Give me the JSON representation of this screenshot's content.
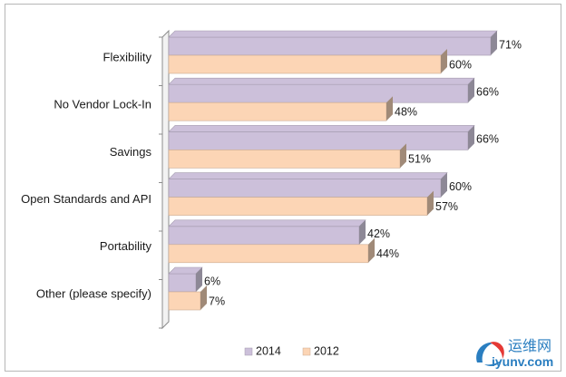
{
  "chart_data": {
    "type": "bar",
    "orientation": "horizontal",
    "style": "3d",
    "categories": [
      "Flexibility",
      "No Vendor Lock-In",
      "Savings",
      "Open Standards and API",
      "Portability",
      "Other (please specify)"
    ],
    "series": [
      {
        "name": "2014",
        "values": [
          71,
          66,
          66,
          60,
          42,
          6
        ],
        "labels": [
          "71%",
          "66%",
          "66%",
          "60%",
          "42%",
          "6%"
        ],
        "color": "#ccc0da"
      },
      {
        "name": "2012",
        "values": [
          60,
          48,
          51,
          57,
          44,
          7
        ],
        "labels": [
          "60%",
          "48%",
          "51%",
          "57%",
          "44%",
          "7%"
        ],
        "color": "#fcd5b5"
      }
    ],
    "xlim": [
      0,
      80
    ],
    "title": "",
    "xlabel": "",
    "ylabel": "",
    "legend": {
      "position": "bottom",
      "entries": [
        "2014",
        "2012"
      ]
    },
    "grid": false
  },
  "watermark": {
    "cn_text": "运维网",
    "url_text": "iyunv.com"
  }
}
